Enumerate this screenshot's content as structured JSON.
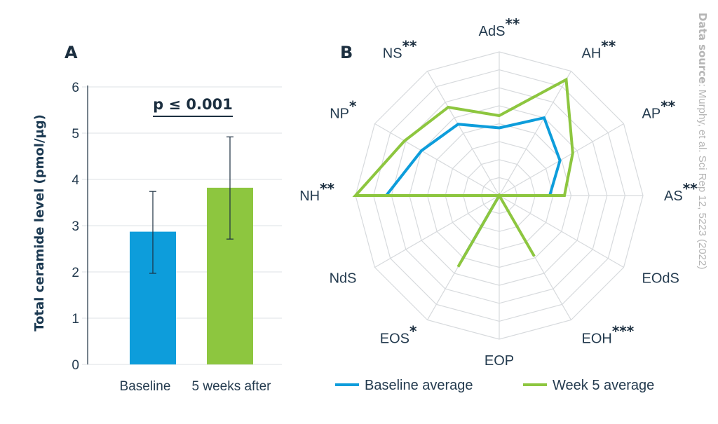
{
  "source": {
    "label": "Data source",
    "text": ": Murphy, et al. Sci Rep 12, 5223 (2022)"
  },
  "chart_data": [
    {
      "type": "bar",
      "panel_label": "A",
      "categories": [
        "Baseline",
        "5 weeks after"
      ],
      "values": [
        2.87,
        3.82
      ],
      "error_low": [
        1.97,
        2.71
      ],
      "error_high": [
        3.74,
        4.92
      ],
      "colors": [
        "#0d9ddb",
        "#8dc63f"
      ],
      "ylabel": "Total ceramide level (pmol/μg)",
      "ylim": [
        0,
        6
      ],
      "yticks": [
        "0",
        "1",
        "2",
        "3",
        "4",
        "5",
        "6"
      ],
      "grid": true,
      "annotation": "p ≤ 0.001"
    },
    {
      "type": "radar",
      "panel_label": "B",
      "axes": [
        {
          "label": "AdS",
          "stars": "**"
        },
        {
          "label": "AH",
          "stars": "**"
        },
        {
          "label": "AP",
          "stars": "**"
        },
        {
          "label": "AS",
          "stars": "**"
        },
        {
          "label": "EOdS",
          "stars": ""
        },
        {
          "label": "EOH",
          "stars": "***"
        },
        {
          "label": "EOP",
          "stars": ""
        },
        {
          "label": "EOS",
          "stars": "*"
        },
        {
          "label": "NdS",
          "stars": ""
        },
        {
          "label": "NH",
          "stars": "**"
        },
        {
          "label": "NP",
          "stars": "*"
        },
        {
          "label": "NS",
          "stars": "**"
        }
      ],
      "rings": 8,
      "range": [
        0,
        1
      ],
      "legend_position": "bottom",
      "series": [
        {
          "name": "Baseline average",
          "color": "#0d9ddb",
          "values": [
            0.38,
            0.56,
            0.4,
            0.24,
            0,
            0,
            0,
            0.44,
            0,
            0.75,
            0.56,
            0.5
          ]
        },
        {
          "name": "Week 5 average",
          "color": "#8dc63f",
          "values": [
            0.48,
            0.92,
            0.52,
            0.36,
            0,
            0.4,
            0,
            0.5,
            0,
            1.0,
            0.72,
            0.66
          ]
        }
      ]
    }
  ]
}
